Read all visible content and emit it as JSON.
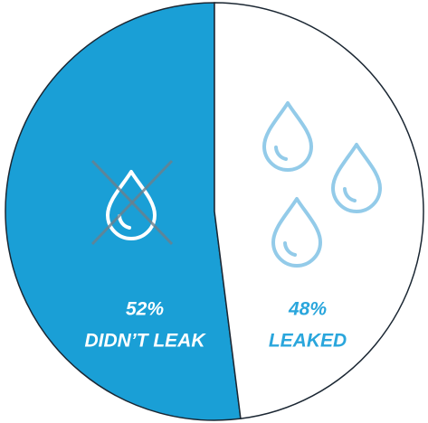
{
  "chart_data": {
    "type": "pie",
    "categories": [
      "DIDN’T LEAK",
      "LEAKED"
    ],
    "values": [
      52,
      48
    ],
    "value_labels": [
      "52%",
      "48%"
    ],
    "colors": [
      "#1a9fd6",
      "#ffffff"
    ],
    "label_colors": [
      "#ffffff",
      "#2aa6dc"
    ]
  }
}
